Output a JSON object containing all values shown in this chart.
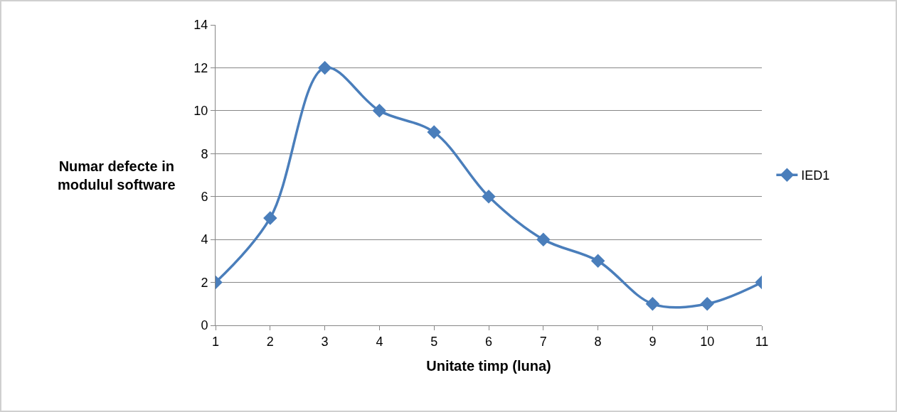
{
  "chart_data": {
    "type": "line",
    "xlabel": "Unitate timp (luna)",
    "ylabel": "Numar defecte in modulul software",
    "x": [
      1,
      2,
      3,
      4,
      5,
      6,
      7,
      8,
      9,
      10,
      11
    ],
    "series": [
      {
        "name": "IED1",
        "color": "#4a7ebb",
        "values": [
          2,
          5,
          12,
          10,
          9,
          6,
          4,
          3,
          1,
          1,
          2
        ]
      }
    ],
    "xlim": [
      1,
      11
    ],
    "xticks": [
      1,
      2,
      3,
      4,
      5,
      6,
      7,
      8,
      9,
      10,
      11
    ],
    "ylim": [
      0,
      14
    ],
    "yticks": [
      0,
      2,
      4,
      6,
      8,
      10,
      12,
      14
    ],
    "grid": "y",
    "legend": "right",
    "marker": "diamond",
    "line_style": "solid"
  }
}
